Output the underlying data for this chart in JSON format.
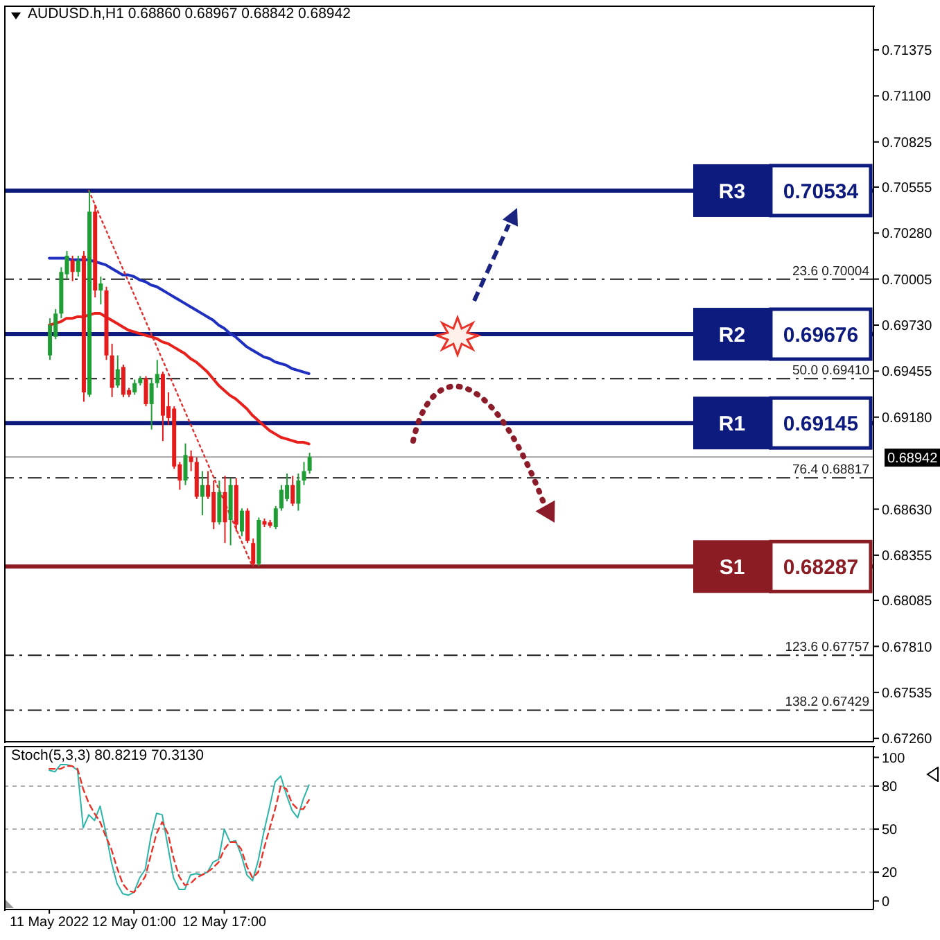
{
  "chart_data": [
    {
      "type": "candlestick",
      "title": "AUDUSD.h,H1 0.68860 0.68967 0.68842 0.68942",
      "x": [
        "2022-05-11T10:00",
        "2022-05-11T11:00",
        "2022-05-11T12:00",
        "2022-05-11T13:00",
        "2022-05-11T14:00",
        "2022-05-11T15:00",
        "2022-05-11T16:00",
        "2022-05-11T17:00",
        "2022-05-11T18:00",
        "2022-05-11T19:00",
        "2022-05-11T20:00",
        "2022-05-11T21:00",
        "2022-05-11T22:00",
        "2022-05-11T23:00",
        "2022-05-12T00:00",
        "2022-05-12T01:00",
        "2022-05-12T02:00",
        "2022-05-12T03:00",
        "2022-05-12T04:00",
        "2022-05-12T05:00",
        "2022-05-12T06:00",
        "2022-05-12T07:00",
        "2022-05-12T08:00",
        "2022-05-12T09:00",
        "2022-05-12T10:00",
        "2022-05-12T11:00",
        "2022-05-12T12:00",
        "2022-05-12T13:00",
        "2022-05-12T14:00",
        "2022-05-12T15:00",
        "2022-05-12T16:00",
        "2022-05-12T17:00",
        "2022-05-12T18:00",
        "2022-05-12T19:00",
        "2022-05-12T20:00",
        "2022-05-12T21:00",
        "2022-05-12T22:00",
        "2022-05-12T23:00",
        "2022-05-13T00:00",
        "2022-05-13T01:00",
        "2022-05-13T02:00",
        "2022-05-13T03:00",
        "2022-05-13T04:00",
        "2022-05-13T05:00",
        "2022-05-13T06:00",
        "2022-05-13T07:00",
        "2022-05-13T08:00"
      ],
      "ohlc": [
        [
          0.69549,
          0.69771,
          0.69522,
          0.69729
        ],
        [
          0.6966,
          0.69826,
          0.69646,
          0.69799
        ],
        [
          0.69799,
          0.70076,
          0.69771,
          0.70048
        ],
        [
          0.70034,
          0.70173,
          0.70006,
          0.70145
        ],
        [
          0.70117,
          0.70145,
          0.69993,
          0.70048
        ],
        [
          0.70048,
          0.70145,
          0.7002,
          0.70117
        ],
        [
          0.70145,
          0.70173,
          0.69272,
          0.69328
        ],
        [
          0.69314,
          0.70534,
          0.693,
          0.70408
        ],
        [
          0.70408,
          0.7045,
          0.69896,
          0.69937
        ],
        [
          0.69937,
          0.7002,
          0.69854,
          0.69979
        ],
        [
          0.69937,
          0.69959,
          0.69522,
          0.69549
        ],
        [
          0.69549,
          0.69619,
          0.693,
          0.69355
        ],
        [
          0.69369,
          0.69549,
          0.69355,
          0.69466
        ],
        [
          0.6948,
          0.69494,
          0.693,
          0.69314
        ],
        [
          0.69342,
          0.69355,
          0.693,
          0.69314
        ],
        [
          0.69328,
          0.69405,
          0.69314,
          0.69383
        ],
        [
          0.69383,
          0.69425,
          0.69369,
          0.69411
        ],
        [
          0.69411,
          0.69425,
          0.69245,
          0.69258
        ],
        [
          0.69258,
          0.69411,
          0.69106,
          0.69383
        ],
        [
          0.69383,
          0.69522,
          0.69355,
          0.69438
        ],
        [
          0.69438,
          0.69452,
          0.69037,
          0.69189
        ],
        [
          0.69245,
          0.69328,
          0.69134,
          0.69175
        ],
        [
          0.69231,
          0.69245,
          0.68871,
          0.68885
        ],
        [
          0.68898,
          0.68912,
          0.68746,
          0.68801
        ],
        [
          0.68801,
          0.69023,
          0.68774,
          0.68954
        ],
        [
          0.68945,
          0.68981,
          0.68857,
          0.68912
        ],
        [
          0.68912,
          0.6894,
          0.68691,
          0.68704
        ],
        [
          0.68704,
          0.68857,
          0.68594,
          0.68774
        ],
        [
          0.68774,
          0.68857,
          0.68691,
          0.68704
        ],
        [
          0.68732,
          0.68801,
          0.68511,
          0.68552
        ],
        [
          0.68552,
          0.68801,
          0.68538,
          0.68732
        ],
        [
          0.68732,
          0.68829,
          0.68428,
          0.68552
        ],
        [
          0.68566,
          0.68815,
          0.68414,
          0.68774
        ],
        [
          0.68774,
          0.68815,
          0.68497,
          0.68538
        ],
        [
          0.68497,
          0.68635,
          0.68469,
          0.68621
        ],
        [
          0.68621,
          0.68635,
          0.68428,
          0.68441
        ],
        [
          0.68428,
          0.68455,
          0.68287,
          0.68303
        ],
        [
          0.68303,
          0.6858,
          0.6829,
          0.68566
        ],
        [
          0.68558,
          0.68574,
          0.68524,
          0.68538
        ],
        [
          0.68552,
          0.68566,
          0.68519,
          0.6853
        ],
        [
          0.68524,
          0.68649,
          0.68511,
          0.68635
        ],
        [
          0.68635,
          0.68774,
          0.68621,
          0.68746
        ],
        [
          0.68691,
          0.68843,
          0.68677,
          0.68774
        ],
        [
          0.68774,
          0.68829,
          0.68649,
          0.68663
        ],
        [
          0.68663,
          0.68843,
          0.68621,
          0.68801
        ],
        [
          0.68801,
          0.68912,
          0.68774,
          0.68857
        ],
        [
          0.6886,
          0.68967,
          0.68842,
          0.68942
        ]
      ],
      "colors": [
        "#1f9e35",
        "#1f9e35",
        "#1f9e35",
        "#1f9e35",
        "#e51b1b",
        "#1f9e35",
        "#e51b1b",
        "#1f9e35",
        "#e51b1b",
        "#1f9e35",
        "#e51b1b",
        "#e51b1b",
        "#1f9e35",
        "#e51b1b",
        "#e51b1b",
        "#1f9e35",
        "#1f9e35",
        "#e51b1b",
        "#1f9e35",
        "#1f9e35",
        "#e51b1b",
        "#e51b1b",
        "#e51b1b",
        "#e51b1b",
        "#1f9e35",
        "#e51b1b",
        "#e51b1b",
        "#1f9e35",
        "#e51b1b",
        "#e51b1b",
        "#1f9e35",
        "#e51b1b",
        "#1f9e35",
        "#e51b1b",
        "#1f9e35",
        "#e51b1b",
        "#e51b1b",
        "#1f9e35",
        "#e51b1b",
        "#e51b1b",
        "#1f9e35",
        "#1f9e35",
        "#1f9e35",
        "#e51b1b",
        "#1f9e35",
        "#1f9e35",
        "#1f9e35"
      ],
      "series": [
        {
          "type": "line",
          "color": "#1f2fc0",
          "values": [
            0.7013,
            0.7013,
            0.7013,
            0.7013,
            0.7012,
            0.7012,
            0.7012,
            0.7012,
            0.7011,
            0.701,
            0.7009,
            0.7007,
            0.7005,
            0.7003,
            0.7003,
            0.7002,
            0.7,
            0.6999,
            0.6997,
            0.6996,
            0.6994,
            0.6992,
            0.699,
            0.6988,
            0.6986,
            0.6984,
            0.6982,
            0.698,
            0.6978,
            0.6976,
            0.6973,
            0.6971,
            0.6968,
            0.6966,
            0.6963,
            0.696,
            0.6958,
            0.6956,
            0.6954,
            0.6953,
            0.6951,
            0.695,
            0.6949,
            0.6947,
            0.6946,
            0.6945,
            0.6944
          ]
        },
        {
          "type": "line",
          "color": "#e8201c",
          "values": [
            0.6973,
            0.6974,
            0.6975,
            0.6977,
            0.6977,
            0.6978,
            0.6978,
            0.6979,
            0.698,
            0.698,
            0.6978,
            0.6976,
            0.6974,
            0.6972,
            0.697,
            0.6969,
            0.6968,
            0.6967,
            0.6966,
            0.6965,
            0.6963,
            0.6962,
            0.696,
            0.6958,
            0.6956,
            0.6953,
            0.6951,
            0.6948,
            0.6945,
            0.6941,
            0.6937,
            0.6934,
            0.6931,
            0.6929,
            0.6926,
            0.6923,
            0.6919,
            0.6916,
            0.6913,
            0.691,
            0.6908,
            0.6906,
            0.6905,
            0.6904,
            0.6903,
            0.6903,
            0.6902
          ]
        },
        {
          "type": "line",
          "color": "#e03030",
          "line_style": "dotted",
          "x": [
            "2022-05-11T17:00",
            "2022-05-12T22:00"
          ],
          "values": [
            0.70534,
            0.68287
          ]
        }
      ],
      "xlim": [
        "2022-05-11T02:00",
        "2022-05-17T12:00"
      ],
      "ylim": [
        0.6724,
        0.7164
      ],
      "yticks": [
        0.71375,
        {
          "value": 0.711,
          "label": "0.71100"
        },
        0.70825,
        0.70555,
        {
          "value": 0.7028,
          "label": "0.70280"
        },
        0.70005,
        {
          "value": 0.6973,
          "label": "0.69730"
        },
        0.69455,
        {
          "value": 0.6918,
          "label": "0.69180"
        },
        {
          "value": 0.6863,
          "label": "0.68630"
        },
        0.68355,
        0.68085,
        {
          "value": 0.6781,
          "label": "0.67810"
        },
        0.67535,
        {
          "value": 0.6726,
          "label": "0.67260"
        }
      ],
      "tick_labels": "y",
      "ref_lines": [
        {
          "axis": "y",
          "value": 0.70534,
          "label": "R3",
          "color": "#0d1a7e"
        },
        {
          "axis": "y",
          "value": 0.69676,
          "label": "R2",
          "color": "#0d1a7e"
        },
        {
          "axis": "y",
          "value": 0.69145,
          "label": "R1",
          "color": "#0d1a7e"
        },
        {
          "axis": "y",
          "value": 0.68287,
          "label": "S1",
          "color": "#8c1c24"
        },
        {
          "axis": "y",
          "value": 0.70004,
          "label": "23.6 0.70004",
          "color": "#1a1a1a",
          "line_style": "dashed"
        },
        {
          "axis": "y",
          "value": 0.6941,
          "label": "50.0 0.69410",
          "color": "#1a1a1a",
          "line_style": "dashed"
        },
        {
          "axis": "y",
          "value": 0.68817,
          "label": "76.4 0.68817",
          "color": "#1a1a1a",
          "line_style": "dashed"
        },
        {
          "axis": "y",
          "value": 0.67757,
          "label": "123.6 0.67757",
          "color": "#1a1a1a",
          "line_style": "dashed"
        },
        {
          "axis": "y",
          "value": 0.67429,
          "label": "138.2 0.67429",
          "color": "#1a1a1a",
          "line_style": "dashed"
        },
        {
          "axis": "y",
          "value": 0.68942,
          "label": "0.68942",
          "color": "#a0a0a0"
        }
      ],
      "annotations": [
        {
          "text": "0.70534",
          "y": 0.70534
        },
        {
          "text": "0.69676",
          "y": 0.69676
        },
        {
          "text": "0.69145",
          "y": 0.69145
        },
        {
          "text": "0.68287",
          "y": 0.68287
        }
      ]
    },
    {
      "type": "line",
      "title": "Stoch(5,3,3) 80.8219 70.3130",
      "x": [
        "2022-05-11T10:00",
        "2022-05-11T11:00",
        "2022-05-11T12:00",
        "2022-05-11T13:00",
        "2022-05-11T14:00",
        "2022-05-11T15:00",
        "2022-05-11T16:00",
        "2022-05-11T17:00",
        "2022-05-11T18:00",
        "2022-05-11T19:00",
        "2022-05-11T20:00",
        "2022-05-11T21:00",
        "2022-05-11T22:00",
        "2022-05-11T23:00",
        "2022-05-12T00:00",
        "2022-05-12T01:00",
        "2022-05-12T02:00",
        "2022-05-12T03:00",
        "2022-05-12T04:00",
        "2022-05-12T05:00",
        "2022-05-12T06:00",
        "2022-05-12T07:00",
        "2022-05-12T08:00",
        "2022-05-12T09:00",
        "2022-05-12T10:00",
        "2022-05-12T11:00",
        "2022-05-12T12:00",
        "2022-05-12T13:00",
        "2022-05-12T14:00",
        "2022-05-12T15:00",
        "2022-05-12T16:00",
        "2022-05-12T17:00",
        "2022-05-12T18:00",
        "2022-05-12T19:00",
        "2022-05-12T20:00",
        "2022-05-12T21:00",
        "2022-05-12T22:00",
        "2022-05-12T23:00",
        "2022-05-13T00:00",
        "2022-05-13T01:00",
        "2022-05-13T02:00",
        "2022-05-13T03:00",
        "2022-05-13T04:00",
        "2022-05-13T05:00",
        "2022-05-13T06:00",
        "2022-05-13T07:00",
        "2022-05-13T08:00"
      ],
      "series": [
        {
          "color": "#2bb5a8",
          "values": [
            91,
            90,
            95,
            95,
            94,
            91,
            51,
            60,
            56,
            66,
            48,
            27,
            12,
            5,
            4,
            6,
            16,
            22,
            45,
            61,
            60,
            38,
            16,
            8,
            8,
            18,
            19,
            18,
            20,
            27,
            29,
            50,
            41,
            42,
            32,
            18,
            14,
            28,
            48,
            65,
            83,
            87,
            74,
            63,
            58,
            71,
            80.8
          ]
        },
        {
          "color": "#e8332a",
          "line_style": "dashed",
          "values": [
            92,
            92,
            92,
            94,
            94,
            92,
            78,
            68,
            61,
            55,
            45,
            36,
            23,
            12,
            7,
            6,
            11,
            17,
            32,
            47,
            55,
            47,
            30,
            17,
            11,
            12,
            16,
            18,
            20,
            23,
            27,
            36,
            41,
            41,
            36,
            24,
            16,
            20,
            36,
            50,
            64,
            80,
            78,
            68,
            64,
            64,
            70.3
          ]
        }
      ],
      "xlim": [
        "2022-05-11T02:00",
        "2022-05-17T12:00"
      ],
      "xticks": [
        {
          "value": "2022-05-11T10:00",
          "label": "11 May 2022"
        },
        {
          "value": "2022-05-12T01:00",
          "label": "12 May 01:00"
        },
        {
          "value": "2022-05-12T17:00",
          "label": "12 May 17:00"
        }
      ],
      "ylim": [
        -6,
        108
      ],
      "yticks": [
        100,
        80,
        50,
        20,
        0
      ],
      "ref_lines": [
        {
          "axis": "y",
          "value": 80,
          "color": "#b0b0b0",
          "line_style": "dotted"
        },
        {
          "axis": "y",
          "value": 50,
          "color": "#b0b0b0",
          "line_style": "dotted"
        },
        {
          "axis": "y",
          "value": 20,
          "color": "#b0b0b0",
          "line_style": "dotted"
        }
      ]
    }
  ]
}
